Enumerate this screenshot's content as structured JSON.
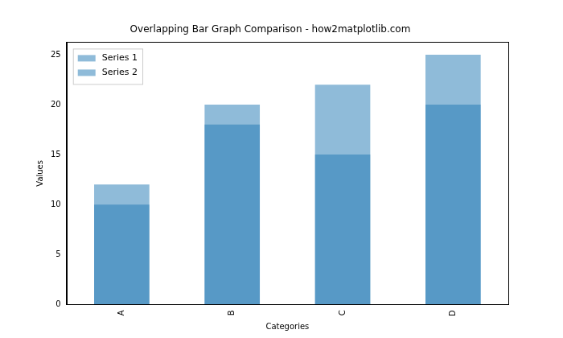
{
  "chart_data": {
    "type": "bar",
    "title": "Overlapping Bar Graph Comparison - how2matplotlib.com",
    "x_label": "Categories",
    "y_label": "Values",
    "categories": [
      "A",
      "B",
      "C",
      "D"
    ],
    "series": [
      {
        "name": "Series 1",
        "color": "#1f77b4",
        "values": [
          10,
          18,
          15,
          20
        ]
      },
      {
        "name": "Series 2",
        "color": "#1f77b4",
        "values": [
          12,
          20,
          22,
          25
        ]
      }
    ],
    "ylim": [
      0,
      26.25
    ],
    "yticks": [
      0,
      5,
      10,
      15,
      20,
      25
    ],
    "legend": "upper left",
    "grid": false,
    "stacked": false
  }
}
